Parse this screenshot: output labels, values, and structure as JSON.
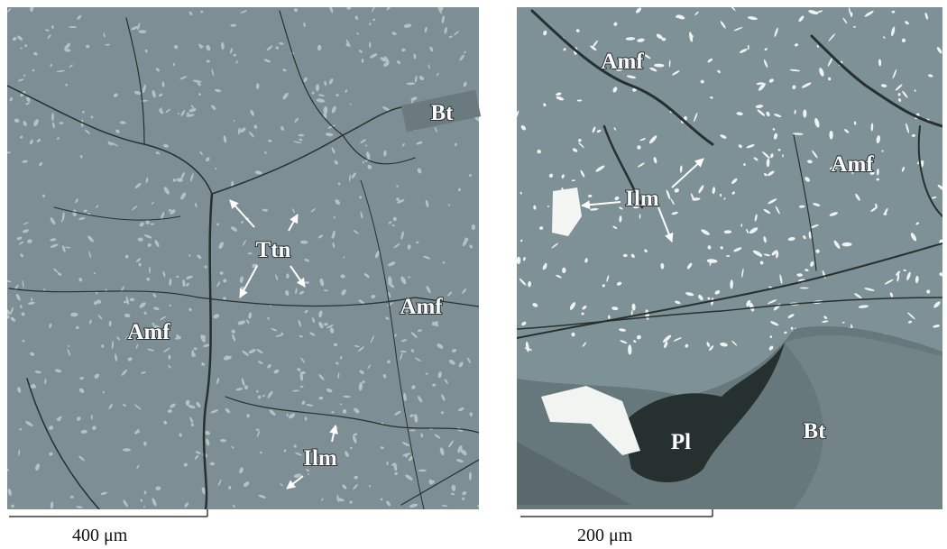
{
  "left_panel": {
    "labels": [
      "Bt",
      "Ttn",
      "Amf",
      "Amf",
      "Ilm"
    ],
    "scale_bar": "400 μm"
  },
  "right_panel": {
    "labels": [
      "Amf",
      "Amf",
      "Ilm",
      "Pl",
      "Bt"
    ],
    "scale_bar": "200 μm"
  }
}
